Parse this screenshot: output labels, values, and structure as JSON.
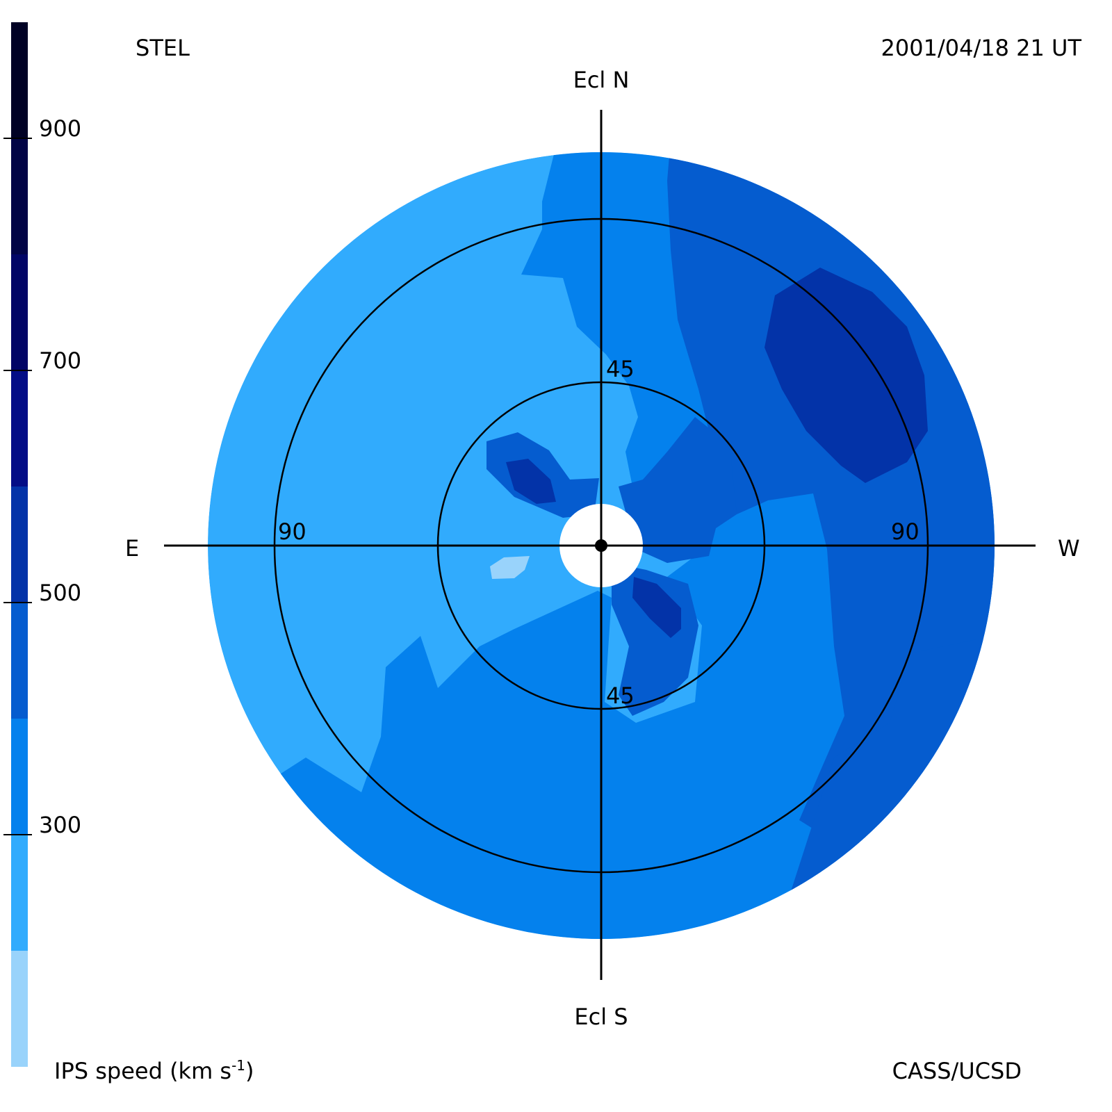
{
  "chart_data": {
    "type": "heatmap",
    "title_left": "STEL",
    "title_right": "2001/04/18 21 UT",
    "credit": "CASS/UCSD",
    "colorbar": {
      "label_main": "IPS speed (km s",
      "label_sup": "-1",
      "label_close": ")",
      "range": [
        100,
        1000
      ],
      "ticks": [
        {
          "value": 300,
          "label": "300"
        },
        {
          "value": 500,
          "label": "500"
        },
        {
          "value": 700,
          "label": "700"
        },
        {
          "value": 900,
          "label": "900"
        }
      ],
      "levels": [
        {
          "from": 100,
          "to": 200,
          "color": "#99d3fb"
        },
        {
          "from": 200,
          "to": 300,
          "color": "#31abfd"
        },
        {
          "from": 300,
          "to": 400,
          "color": "#0481ed"
        },
        {
          "from": 400,
          "to": 500,
          "color": "#055ccf"
        },
        {
          "from": 500,
          "to": 600,
          "color": "#0333a8"
        },
        {
          "from": 600,
          "to": 700,
          "color": "#030d86"
        },
        {
          "from": 700,
          "to": 800,
          "color": "#020566"
        },
        {
          "from": 800,
          "to": 900,
          "color": "#020446"
        },
        {
          "from": 900,
          "to": 1000,
          "color": "#010225"
        }
      ]
    },
    "axes": {
      "north": "Ecl N",
      "south": "Ecl S",
      "east": "E",
      "west": "W"
    },
    "rings": [
      {
        "elongation": 45,
        "labels": [
          "45",
          "45"
        ]
      },
      {
        "elongation": 90,
        "labels": [
          "90",
          "90"
        ]
      },
      {
        "elongation": 120,
        "labels": []
      }
    ]
  }
}
